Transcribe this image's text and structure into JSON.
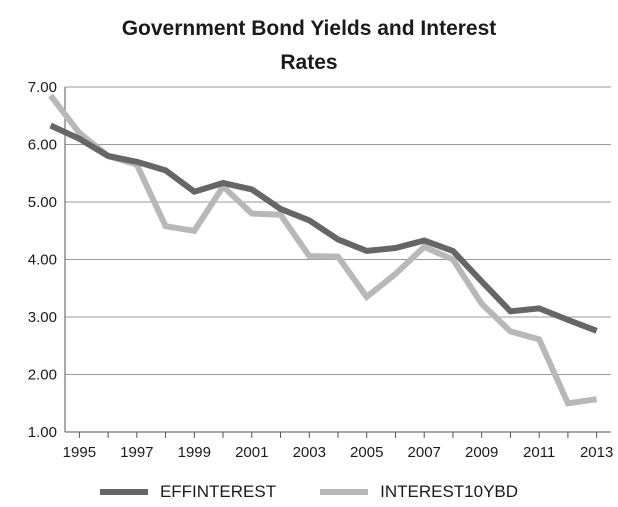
{
  "chart_data": {
    "type": "line",
    "title_lines": [
      "Government Bond Yields and Interest",
      "Rates"
    ],
    "xlabel": "",
    "ylabel": "",
    "x": [
      1994,
      1995,
      1996,
      1997,
      1998,
      1999,
      2000,
      2001,
      2002,
      2003,
      2004,
      2005,
      2006,
      2007,
      2008,
      2009,
      2010,
      2011,
      2012,
      2013
    ],
    "xlim": [
      1994.5,
      2013.5
    ],
    "x_ticks": [
      "1995",
      "1997",
      "1999",
      "2001",
      "2003",
      "2005",
      "2007",
      "2009",
      "2011",
      "2013"
    ],
    "ylim": [
      1.0,
      7.0
    ],
    "y_ticks": [
      "1.00",
      "2.00",
      "3.00",
      "4.00",
      "5.00",
      "6.00",
      "7.00"
    ],
    "grid": "horizontal",
    "legend_position": "bottom",
    "series": [
      {
        "name": "EFFINTEREST",
        "color": "#666666",
        "values": [
          6.33,
          6.1,
          5.8,
          5.7,
          5.55,
          5.18,
          5.33,
          5.22,
          4.88,
          4.68,
          4.35,
          4.15,
          4.2,
          4.33,
          4.15,
          3.62,
          3.1,
          3.15,
          2.95,
          2.76
        ]
      },
      {
        "name": "INTEREST10YBD",
        "color": "#b8b8b8",
        "values": [
          6.85,
          6.2,
          5.8,
          5.65,
          4.58,
          4.5,
          5.27,
          4.8,
          4.78,
          4.06,
          4.05,
          3.35,
          3.75,
          4.22,
          4.0,
          3.23,
          2.75,
          2.61,
          1.5,
          1.57
        ]
      }
    ]
  }
}
